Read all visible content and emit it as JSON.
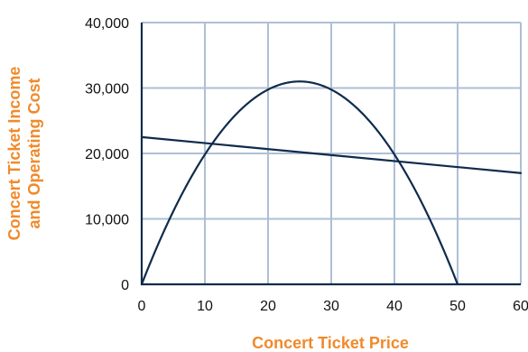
{
  "chart_data": {
    "type": "line",
    "xlabel": "Concert Ticket Price",
    "ylabel_lines": [
      "Concert Ticket  Income",
      "and Operating Cost"
    ],
    "xlim": [
      0,
      60
    ],
    "ylim": [
      0,
      40000
    ],
    "x_ticks": [
      0,
      10,
      20,
      30,
      40,
      50,
      60
    ],
    "x_tick_labels": [
      "0",
      "10",
      "20",
      "30",
      "40",
      "50",
      "60"
    ],
    "y_ticks": [
      0,
      10000,
      20000,
      30000,
      40000
    ],
    "y_tick_labels": [
      "0",
      "10,000",
      "20,000",
      "30,000",
      "40,000"
    ],
    "grid": true,
    "series": [
      {
        "kind": "parabola",
        "roots": [
          0,
          50
        ],
        "vertex": [
          25,
          31000
        ],
        "color": "#0f2b4c"
      },
      {
        "kind": "linear",
        "points": [
          [
            0,
            22500
          ],
          [
            60,
            17000
          ]
        ],
        "color": "#0f2b4c"
      }
    ],
    "colors": {
      "grid": "#aebfd6",
      "frame": "#0f2b4c",
      "axis_title": "#f08a2c",
      "tick_text": "#111111"
    }
  }
}
